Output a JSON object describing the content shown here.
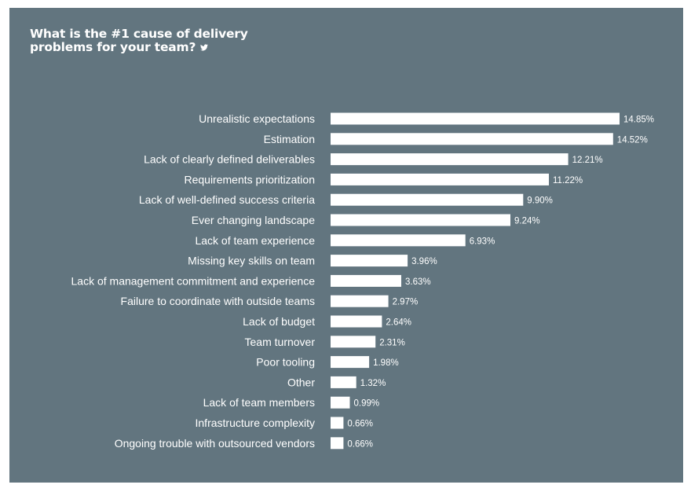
{
  "chart_data": {
    "type": "bar",
    "orientation": "horizontal",
    "title_lines": [
      "What is the #1 cause of delivery",
      "problems for your team?"
    ],
    "title_icon": "twitter-bird-icon",
    "categories": [
      "Unrealistic expectations",
      "Estimation",
      "Lack of clearly defined deliverables",
      "Requirements prioritization",
      "Lack of well-defined success criteria",
      "Ever changing landscape",
      "Lack of team experience",
      "Missing key skills on team",
      "Lack of management commitment and experience",
      "Failure to coordinate with outside teams",
      "Lack of budget",
      "Team turnover",
      "Poor tooling",
      "Other",
      "Lack of team members",
      "Infrastructure complexity",
      "Ongoing trouble with outsourced vendors"
    ],
    "values": [
      14.85,
      14.52,
      12.21,
      11.22,
      9.9,
      9.24,
      6.93,
      3.96,
      3.63,
      2.97,
      2.64,
      2.31,
      1.98,
      1.32,
      0.99,
      0.66,
      0.66
    ],
    "value_labels": [
      "14.85%",
      "14.52%",
      "12.21%",
      "11.22%",
      "9.90%",
      "9.24%",
      "6.93%",
      "3.96%",
      "3.63%",
      "2.97%",
      "2.64%",
      "2.31%",
      "1.98%",
      "1.32%",
      "0.99%",
      "0.66%",
      "0.66%"
    ],
    "xlim": [
      0,
      14.85
    ],
    "grid": false,
    "legend": "none",
    "colors": {
      "background": "#62757f",
      "bar": "#ffffff",
      "text": "#ffffff"
    }
  }
}
